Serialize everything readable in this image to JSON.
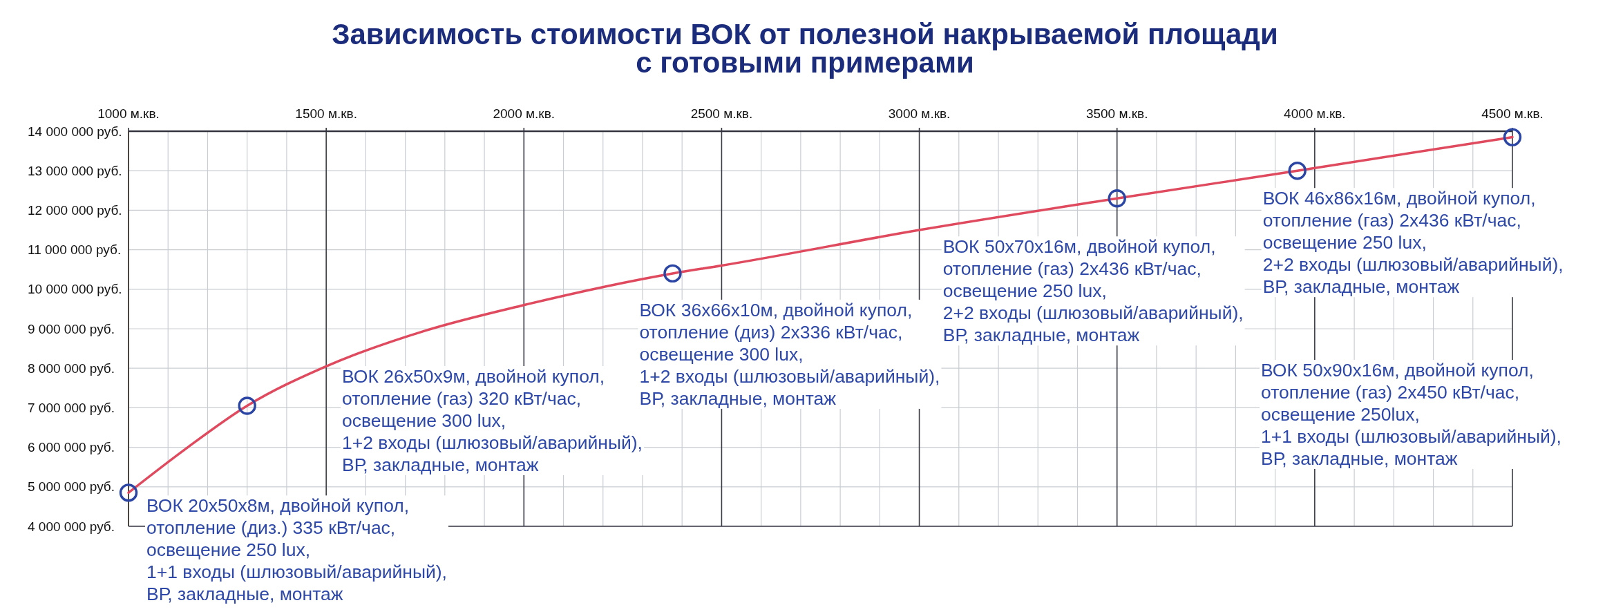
{
  "chart_data": {
    "type": "line",
    "title": "Зависимость стоимости ВОК от полезной накрываемой площади\nс готовыми примерами",
    "xlim": [
      1000,
      4500
    ],
    "xticks": [
      {
        "value": 1000,
        "label": "1000 м.кв."
      },
      {
        "value": 1100,
        "label": null
      },
      {
        "value": 1200,
        "label": null
      },
      {
        "value": 1300,
        "label": null
      },
      {
        "value": 1400,
        "label": null
      },
      {
        "value": 1500,
        "label": "1500 м.кв."
      },
      {
        "value": 1600,
        "label": null
      },
      {
        "value": 1700,
        "label": null
      },
      {
        "value": 1800,
        "label": null
      },
      {
        "value": 1900,
        "label": null
      },
      {
        "value": 2000,
        "label": "2000 м.кв."
      },
      {
        "value": 2100,
        "label": null
      },
      {
        "value": 2200,
        "label": null
      },
      {
        "value": 2300,
        "label": null
      },
      {
        "value": 2400,
        "label": null
      },
      {
        "value": 2500,
        "label": "2500 м.кв."
      },
      {
        "value": 2600,
        "label": null
      },
      {
        "value": 2700,
        "label": null
      },
      {
        "value": 2800,
        "label": null
      },
      {
        "value": 2900,
        "label": null
      },
      {
        "value": 3000,
        "label": "3000 м.кв."
      },
      {
        "value": 3100,
        "label": null
      },
      {
        "value": 3200,
        "label": null
      },
      {
        "value": 3300,
        "label": null
      },
      {
        "value": 3400,
        "label": null
      },
      {
        "value": 3500,
        "label": "3500 м.кв."
      },
      {
        "value": 3600,
        "label": null
      },
      {
        "value": 3700,
        "label": null
      },
      {
        "value": 3800,
        "label": null
      },
      {
        "value": 3900,
        "label": null
      },
      {
        "value": 4000,
        "label": "4000 м.кв."
      },
      {
        "value": 4100,
        "label": null
      },
      {
        "value": 4200,
        "label": null
      },
      {
        "value": 4300,
        "label": null
      },
      {
        "value": 4400,
        "label": null
      },
      {
        "value": 4500,
        "label": "4500 м.кв."
      }
    ],
    "ylim": [
      4000000,
      14000000
    ],
    "yticks": [
      {
        "value": 4000000,
        "label": "4 000 000 руб."
      },
      {
        "value": 5000000,
        "label": "5 000 000 руб."
      },
      {
        "value": 6000000,
        "label": "6 000 000 руб."
      },
      {
        "value": 7000000,
        "label": "7 000 000 руб."
      },
      {
        "value": 8000000,
        "label": "8 000 000 руб."
      },
      {
        "value": 9000000,
        "label": "9 000 000 руб."
      },
      {
        "value": 10000000,
        "label": "10 000 000 руб."
      },
      {
        "value": 11000000,
        "label": "11 000 000 руб."
      },
      {
        "value": 12000000,
        "label": "12 000 000 руб."
      },
      {
        "value": 13000000,
        "label": "13 000 000 руб."
      },
      {
        "value": 14000000,
        "label": "14 000 000 руб."
      }
    ],
    "grid": true,
    "series": [
      {
        "color": "#e04a5f",
        "marker": "none",
        "x": [
          1000,
          1150,
          1300,
          1500,
          1750,
          2000,
          2376,
          2500,
          3000,
          3500,
          3956,
          4500
        ],
        "values": [
          4850000,
          6000000,
          7050000,
          8050000,
          8950000,
          9600000,
          10400000,
          10600000,
          11500000,
          12300000,
          13000000,
          13850000
        ]
      },
      {
        "type": "scatter",
        "color": "#2b45a5",
        "marker": "circle",
        "x": [
          1000,
          1300,
          2376,
          3500,
          3956,
          4500
        ],
        "values": [
          4850000,
          7050000,
          10400000,
          12300000,
          13000000,
          13850000
        ]
      }
    ],
    "annotations": [
      {
        "text": "ВОК 20x50x8м, двойной купол,\nотопление (диз.) 335 кВт/час,\nосвещение 250 lux,\n1+1 входы (шлюзовый/аварийный),\nВР, закладные, монтаж",
        "x": 1000,
        "y": 4850000
      },
      "ВОК 26x50x9м, двойной купол,\nотопление (газ) 320 кВт/час,\nосвещение 300 lux,\n1+2 входы (шлюзовый/аварийный),\nВР, закладные, монтаж",
      {
        "text": "ВОК 36x66x10м, двойной купол,\nотопление (диз) 2x336 кВт/час,\nосвещение 300 lux,\n1+2 входы (шлюзовый/аварийный),\nВР, закладные, монтаж",
        "x": 2376,
        "y": 10400000
      },
      {
        "text": "ВОК 50x70x16м, двойной купол,\nотопление (газ) 2x436 кВт/час,\nосвещение 250 lux,\n2+2 входы (шлюзовый/аварийный),\nВР, закладные, монтаж",
        "x": 3500,
        "y": 12300000
      },
      {
        "text": "ВОК 46x86x16м, двойной купол,\nотопление (газ) 2x436 кВт/час,\nосвещение 250 lux,\n2+2 входы (шлюзовый/аварийный),\nВР, закладные, монтаж",
        "x": 3956,
        "y": 13000000
      },
      "ВОК 50x90x16м, двойной купол,\nотопление (газ) 2x450 кВт/час,\nосвещение 250lux,\n1+1 входы (шлюзовый/аварийный),\nВР, закладные, монтаж"
    ]
  }
}
